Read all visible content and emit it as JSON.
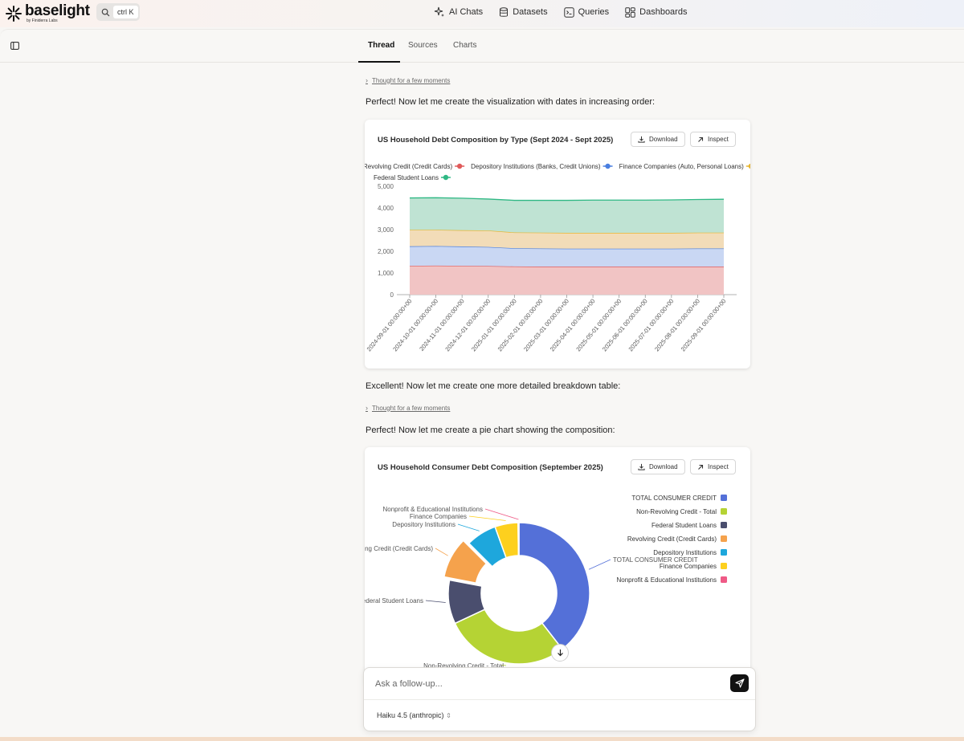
{
  "app": {
    "logo_name": "baselight",
    "logo_sub": "by Finiderra Labs",
    "search_kbd": "ctrl K",
    "nav": [
      {
        "label": "AI Chats",
        "icon": "sparkle-icon"
      },
      {
        "label": "Datasets",
        "icon": "database-icon"
      },
      {
        "label": "Queries",
        "icon": "terminal-icon"
      },
      {
        "label": "Dashboards",
        "icon": "dashboard-icon"
      }
    ]
  },
  "tabs": [
    "Thread",
    "Sources",
    "Charts"
  ],
  "thread": {
    "thought1": "Thought for a few moments",
    "msg1": "Perfect! Now let me create the visualization with dates in increasing order:",
    "msg2": "Excellent! Now let me create one more detailed breakdown table:",
    "thought2": "Thought for a few moments",
    "msg3": "Perfect! Now let me create a pie chart showing the composition:"
  },
  "buttons": {
    "download": "Download",
    "inspect": "Inspect"
  },
  "chart_data": [
    {
      "type": "area",
      "title": "US Household Debt Composition by Type (Sept 2024 - Sept 2025)",
      "stacked": true,
      "legend_position": "top",
      "x": [
        "2024-09-01 00:00:00+00",
        "2024-10-01 00:00:00+00",
        "2024-11-01 00:00:00+00",
        "2024-12-01 00:00:00+00",
        "2025-01-01 00:00:00+00",
        "2025-02-01 00:00:00+00",
        "2025-03-01 00:00:00+00",
        "2025-04-01 00:00:00+00",
        "2025-05-01 00:00:00+00",
        "2025-06-01 00:00:00+00",
        "2025-07-01 00:00:00+00",
        "2025-08-01 00:00:00+00",
        "2025-09-01 00:00:00+00"
      ],
      "y_ticks": [
        "0",
        "1,000",
        "2,000",
        "3,000",
        "4,000",
        "5,000"
      ],
      "ylim": [
        0,
        5000
      ],
      "series": [
        {
          "name": "Revolving Credit (Credit Cards)",
          "color": "#e05a5a",
          "fill": "#f1c4c4",
          "values": [
            1330,
            1340,
            1330,
            1320,
            1300,
            1290,
            1290,
            1290,
            1290,
            1290,
            1290,
            1290,
            1290
          ]
        },
        {
          "name": "Depository Institutions (Banks, Credit Unions)",
          "color": "#4a7fe0",
          "fill": "#c9d7f3",
          "values": [
            900,
            900,
            890,
            880,
            840,
            840,
            830,
            830,
            830,
            830,
            830,
            840,
            840
          ]
        },
        {
          "name": "Finance Companies (Auto, Personal Loans)",
          "color": "#e6b530",
          "fill": "#f2dcb8",
          "values": [
            760,
            750,
            750,
            760,
            730,
            730,
            730,
            730,
            730,
            730,
            730,
            730,
            730
          ]
        },
        {
          "name": "Federal Student Loans",
          "color": "#2fb884",
          "fill": "#bfe3d3",
          "values": [
            1470,
            1480,
            1480,
            1450,
            1480,
            1490,
            1500,
            1510,
            1510,
            1510,
            1520,
            1530,
            1540
          ]
        }
      ]
    },
    {
      "type": "pie",
      "title": "US Household Consumer Debt Composition (September 2025)",
      "legend_position": "right",
      "series": [
        {
          "name": "TOTAL CONSUMER CREDIT",
          "color": "#5470d8",
          "value": 39.5
        },
        {
          "name": "Non-Revolving Credit - Total",
          "color": "#b5d334",
          "value": 28.5
        },
        {
          "name": "Federal Student Loans",
          "color": "#4a4e6e",
          "value": 10
        },
        {
          "name": "Revolving Credit (Credit Cards)",
          "color": "#f5a24c",
          "value": 9.5
        },
        {
          "name": "Depository Institutions",
          "color": "#1ea7dc",
          "value": 7
        },
        {
          "name": "Finance Companies",
          "color": "#fdd01e",
          "value": 5.3
        },
        {
          "name": "Nonprofit & Educational Institutions",
          "color": "#ef5a86",
          "value": 0.2
        }
      ]
    }
  ],
  "dock": {
    "placeholder": "Ask a follow-up...",
    "model": "Haiku 4.5 (anthropic)"
  }
}
